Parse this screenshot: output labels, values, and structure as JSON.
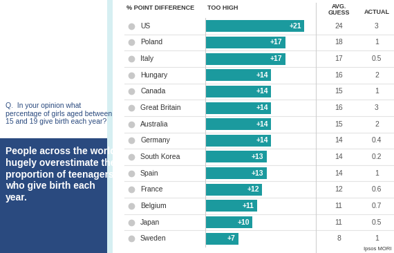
{
  "chart_data": {
    "type": "bar",
    "orientation": "horizontal",
    "title": "% POINT DIFFERENCE",
    "subtitle": "TOO HIGH",
    "question": "Q.  In your opinion what percentage of girls aged between 15 and 19 give birth each year?",
    "note": "People across the world hugely overestimate the proportion of teenagers who give birth each year.",
    "source": "Ipsos MORI",
    "categories": [
      "US",
      "Poland",
      "Italy",
      "Hungary",
      "Canada",
      "Great Britain",
      "Australia",
      "Germany",
      "South Korea",
      "Spain",
      "France",
      "Belgium",
      "Japan",
      "Sweden"
    ],
    "values": [
      21,
      17,
      17,
      14,
      14,
      14,
      14,
      14,
      13,
      13,
      12,
      11,
      10,
      7
    ],
    "value_labels": [
      "+21",
      "+17",
      "+17",
      "+14",
      "+14",
      "+14",
      "+14",
      "+14",
      "+13",
      "+13",
      "+12",
      "+11",
      "+10",
      "+7"
    ],
    "color": "#1b9a9e",
    "data_labels": true,
    "tick_labels": false,
    "xlim": [
      0,
      22
    ],
    "columns": [
      {
        "name": "AVG. GUESS",
        "values": [
          24,
          18,
          17,
          16,
          15,
          16,
          15,
          14,
          14,
          14,
          12,
          11,
          11,
          8
        ]
      },
      {
        "name": "ACTUAL",
        "values": [
          3,
          1,
          0.5,
          2,
          1,
          3,
          2,
          0.4,
          0.2,
          1,
          0.6,
          0.7,
          0.5,
          1
        ]
      }
    ]
  }
}
